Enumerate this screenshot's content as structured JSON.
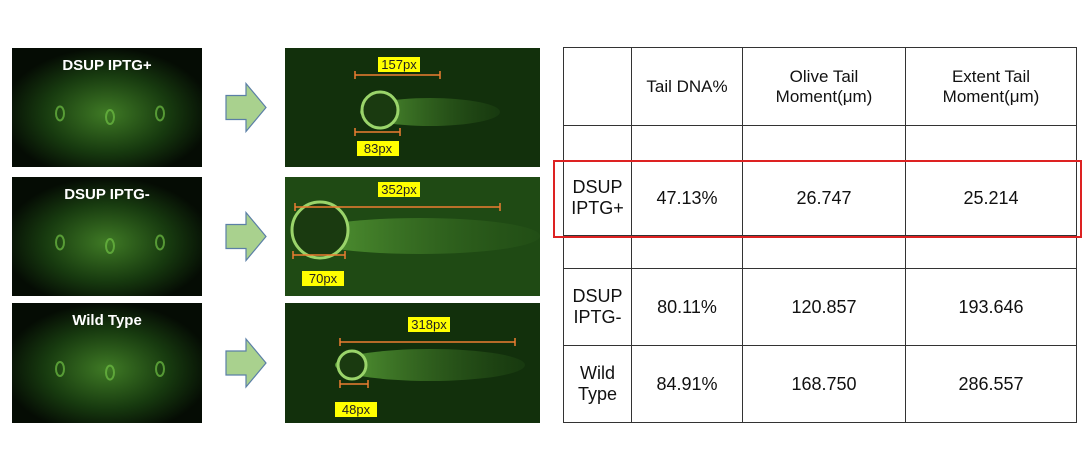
{
  "panels": [
    {
      "label": "DSUP IPTG+",
      "measurements": [
        "157px",
        "83px"
      ]
    },
    {
      "label": "DSUP IPTG-",
      "measurements": [
        "352px",
        "70px"
      ]
    },
    {
      "label": "Wild Type",
      "measurements": [
        "318px",
        "48px"
      ]
    }
  ],
  "table": {
    "header": [
      "Tail DNA%",
      "Olive Tail Moment(μm)",
      "Extent Tail Moment(μm)"
    ],
    "rows": [
      [
        "DSUP IPTG+",
        "47.13%",
        "26.747",
        "25.214"
      ],
      [
        "DSUP IPTG-",
        "80.11%",
        "120.857",
        "193.646"
      ],
      [
        "Wild Type",
        "84.91%",
        "168.750",
        "286.557"
      ]
    ]
  }
}
